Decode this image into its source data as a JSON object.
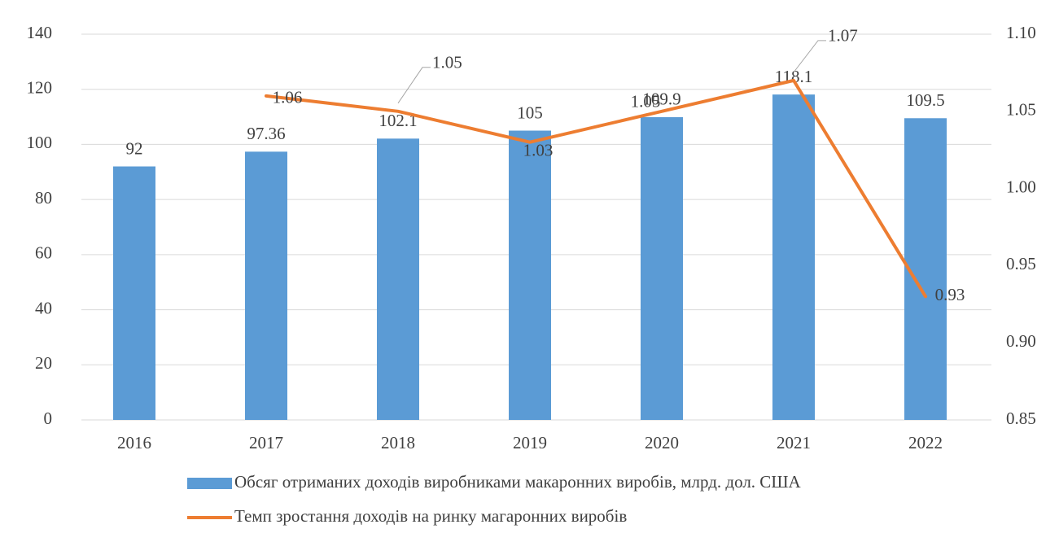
{
  "chart_data": {
    "type": "bar-line",
    "categories": [
      "2016",
      "2017",
      "2018",
      "2019",
      "2020",
      "2021",
      "2022"
    ],
    "series": [
      {
        "name": "Обсяг отриманих доходів виробниками макаронних виробів, млрд. дол. США",
        "type": "bar",
        "color": "#5b9bd5",
        "values": [
          92,
          97.36,
          102.1,
          105,
          109.9,
          118.1,
          109.5
        ]
      },
      {
        "name": "Темп зростання доходів на ринку магаронних виробів",
        "type": "line",
        "axis": "y2",
        "color": "#ed7d31",
        "values": [
          null,
          1.06,
          1.05,
          1.03,
          1.05,
          1.07,
          0.93
        ]
      }
    ],
    "ylim": [
      0,
      140
    ],
    "yticks": [
      0,
      20,
      40,
      60,
      80,
      100,
      120,
      140
    ],
    "y2lim": [
      0.85,
      1.1
    ],
    "y2ticks": [
      0.85,
      {
        "value": 0.9,
        "label": "0.90"
      },
      0.95,
      {
        "value": 1.0,
        "label": "1.00"
      },
      1.05,
      {
        "value": 1.1,
        "label": "1.10"
      }
    ],
    "grid": true
  }
}
